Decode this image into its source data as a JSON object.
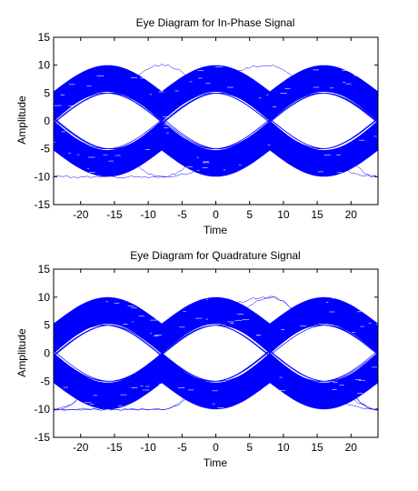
{
  "chart_data": [
    {
      "type": "line",
      "title": "Eye Diagram for In-Phase Signal",
      "xlabel": "Time",
      "ylabel": "Amplitude",
      "xlim": [
        -24,
        24
      ],
      "ylim": [
        -15,
        15
      ],
      "xticks": [
        "-20",
        "-15",
        "-10",
        "-5",
        "0",
        "5",
        "10",
        "15",
        "20"
      ],
      "yticks": [
        "15",
        "10",
        "5",
        "0",
        "-5",
        "-10",
        "-15"
      ],
      "grid": false,
      "series_color": "#0000ff",
      "symbol_levels": [
        -10,
        -5,
        5,
        10
      ],
      "symbol_period": 16,
      "eye_crossing_times": [
        -16,
        0,
        16
      ],
      "eye_crossing_amplitudes": [
        5.3,
        -5.3
      ]
    },
    {
      "type": "line",
      "title": "Eye Diagram for Quadrature Signal",
      "xlabel": "Time",
      "ylabel": "Amplitude",
      "xlim": [
        -24,
        24
      ],
      "ylim": [
        -15,
        15
      ],
      "xticks": [
        "-20",
        "-15",
        "-10",
        "-5",
        "0",
        "5",
        "10",
        "15",
        "20"
      ],
      "yticks": [
        "15",
        "10",
        "5",
        "0",
        "-5",
        "-10",
        "-15"
      ],
      "grid": false,
      "series_color": "#0000ff",
      "symbol_levels": [
        -10,
        -5,
        5,
        10
      ],
      "symbol_period": 16,
      "eye_crossing_times": [
        -16,
        0,
        16
      ],
      "eye_crossing_amplitudes": [
        5.3,
        -5.3
      ]
    }
  ]
}
